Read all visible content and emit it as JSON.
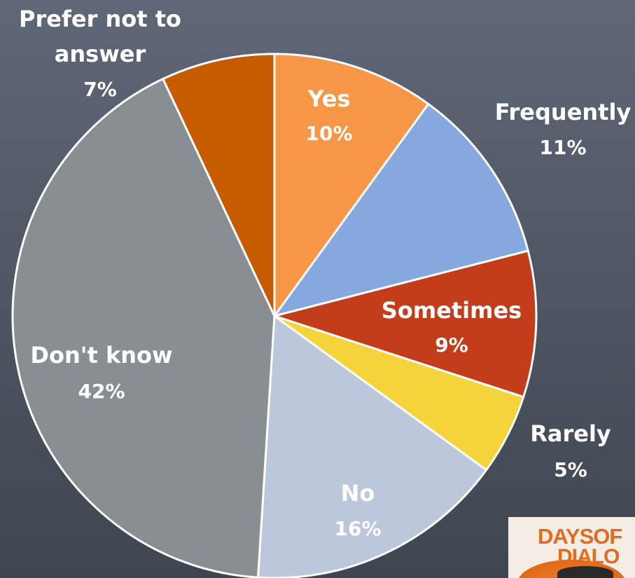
{
  "chart_data": {
    "type": "pie",
    "title": "",
    "start_angle_deg": 0,
    "direction": "clockwise",
    "slice_border_color": "#ffffff",
    "slices": [
      {
        "label": "Yes",
        "value": 10,
        "value_label": "10%",
        "color": "#f79646"
      },
      {
        "label": "Frequently",
        "value": 11,
        "value_label": "11%",
        "color": "#86a8df"
      },
      {
        "label": "Sometimes",
        "value": 9,
        "value_label": "9%",
        "color": "#c43d1a"
      },
      {
        "label": "Rarely",
        "value": 5,
        "value_label": "5%",
        "color": "#f4d33b"
      },
      {
        "label": "No",
        "value": 16,
        "value_label": "16%",
        "color": "#bcc7dc"
      },
      {
        "label": "Don't know",
        "value": 42,
        "value_label": "42%",
        "color": "#898e93"
      },
      {
        "label": "Prefer not to answer",
        "value": 7,
        "value_label": "7%",
        "color": "#c65b00"
      }
    ]
  },
  "logo": {
    "line1": "DAYSOF",
    "line2": "DIALO"
  }
}
